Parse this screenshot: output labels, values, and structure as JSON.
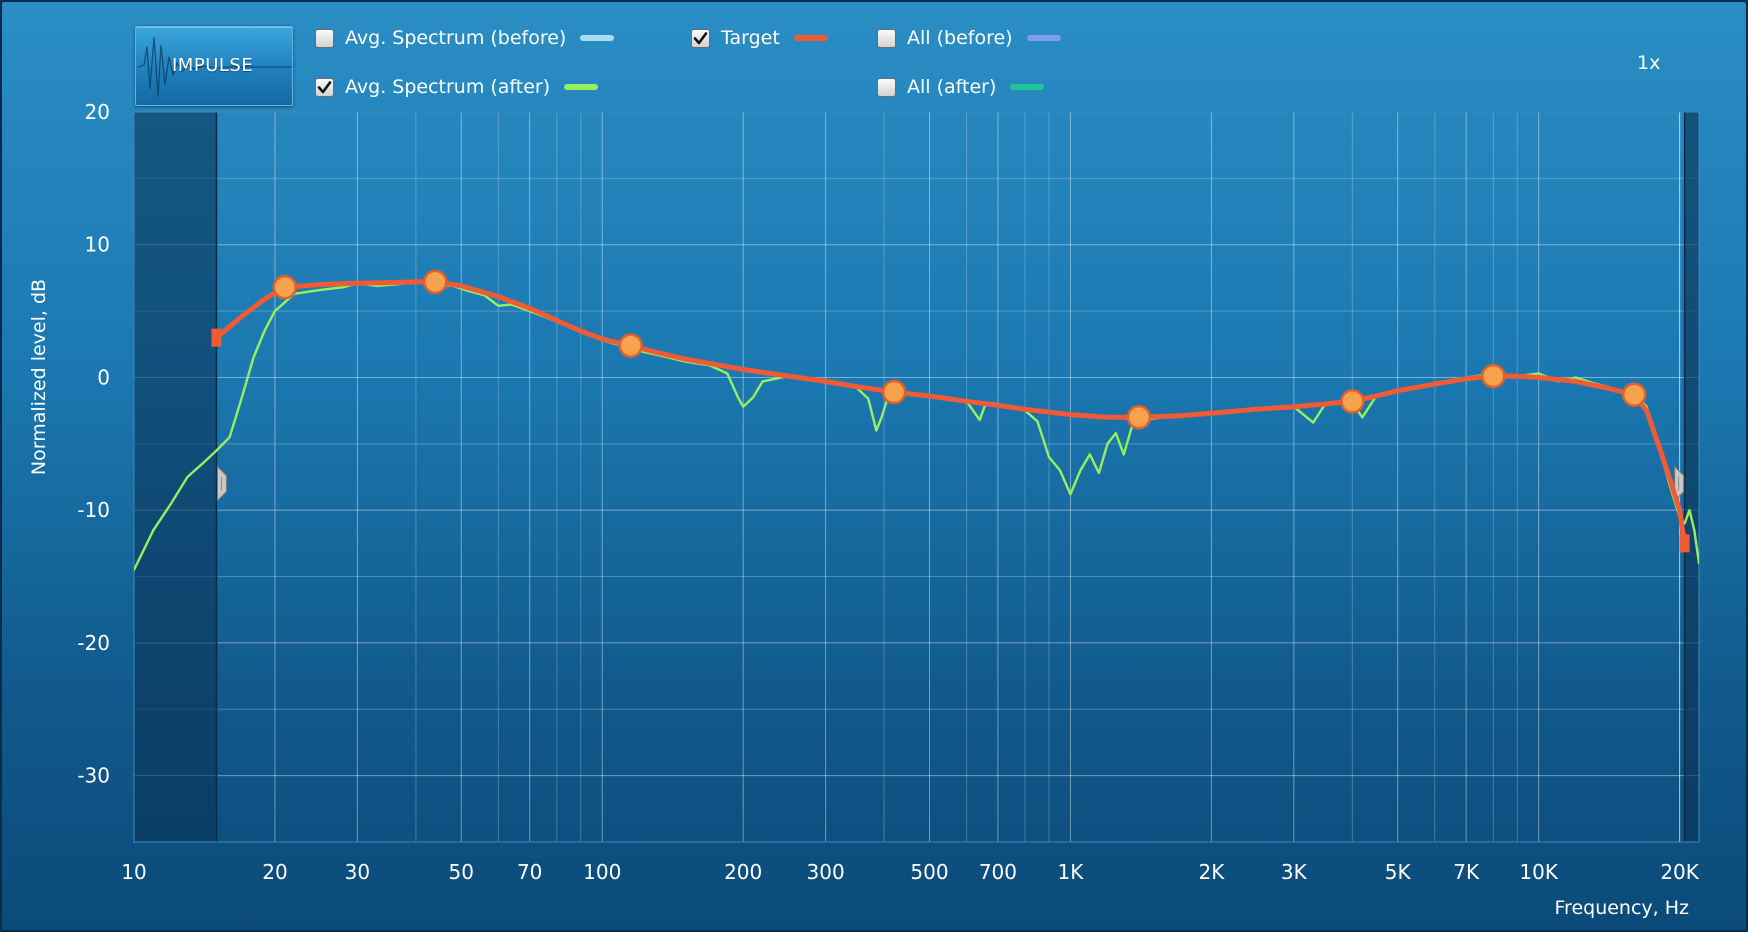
{
  "toolbar": {
    "impulse_label": "IMPULSE",
    "zoom_label": "1x"
  },
  "legend": {
    "items": [
      {
        "label": "Avg. Spectrum (before)",
        "checked": false,
        "color": "#a8dcf5"
      },
      {
        "label": "Target",
        "checked": true,
        "color": "#f05a34"
      },
      {
        "label": "All (before)",
        "checked": false,
        "color": "#7a9ff5"
      },
      {
        "label": "Avg. Spectrum (after)",
        "checked": true,
        "color": "#95f060"
      },
      {
        "label": "All (after)",
        "checked": false,
        "color": "#22c49a"
      }
    ]
  },
  "chart_data": {
    "type": "line",
    "x_scale": "log",
    "xlim": [
      10,
      22000
    ],
    "ylim": [
      -35,
      20
    ],
    "grid": true,
    "xlabel": "Frequency, Hz",
    "ylabel": "Normalized level, dB",
    "x_ticks": [
      {
        "value": 10,
        "label": "10"
      },
      {
        "value": 20,
        "label": "20"
      },
      {
        "value": 30,
        "label": "30"
      },
      {
        "value": 50,
        "label": "50"
      },
      {
        "value": 70,
        "label": "70"
      },
      {
        "value": 100,
        "label": "100"
      },
      {
        "value": 200,
        "label": "200"
      },
      {
        "value": 300,
        "label": "300"
      },
      {
        "value": 500,
        "label": "500"
      },
      {
        "value": 700,
        "label": "700"
      },
      {
        "value": 1000,
        "label": "1K"
      },
      {
        "value": 2000,
        "label": "2K"
      },
      {
        "value": 3000,
        "label": "3K"
      },
      {
        "value": 5000,
        "label": "5K"
      },
      {
        "value": 7000,
        "label": "7K"
      },
      {
        "value": 10000,
        "label": "10K"
      },
      {
        "value": 20000,
        "label": "20K"
      }
    ],
    "y_ticks": [
      {
        "value": 20,
        "label": "20"
      },
      {
        "value": 10,
        "label": "10"
      },
      {
        "value": 0,
        "label": "0"
      },
      {
        "value": -10,
        "label": "-10"
      },
      {
        "value": -20,
        "label": "-20"
      },
      {
        "value": -30,
        "label": "-30"
      }
    ],
    "range_limits": {
      "low_hz": 15,
      "high_hz": 20500
    },
    "series": [
      {
        "name": "Avg. Spectrum (after)",
        "color": "#95f060",
        "points": [
          [
            10,
            -14.5
          ],
          [
            11,
            -11.5
          ],
          [
            12,
            -9.5
          ],
          [
            13,
            -7.5
          ],
          [
            14,
            -6.5
          ],
          [
            15,
            -5.5
          ],
          [
            16,
            -4.5
          ],
          [
            17,
            -1.5
          ],
          [
            18,
            1.5
          ],
          [
            19,
            3.5
          ],
          [
            20,
            5.0
          ],
          [
            22,
            6.3
          ],
          [
            25,
            6.6
          ],
          [
            28,
            6.8
          ],
          [
            30,
            7.1
          ],
          [
            33,
            6.9
          ],
          [
            36,
            7.0
          ],
          [
            40,
            7.2
          ],
          [
            44,
            7.0
          ],
          [
            48,
            6.9
          ],
          [
            52,
            6.5
          ],
          [
            56,
            6.2
          ],
          [
            60,
            5.4
          ],
          [
            64,
            5.5
          ],
          [
            70,
            5.0
          ],
          [
            75,
            4.6
          ],
          [
            80,
            4.2
          ],
          [
            90,
            3.4
          ],
          [
            100,
            2.8
          ],
          [
            110,
            2.4
          ],
          [
            120,
            2.0
          ],
          [
            135,
            1.6
          ],
          [
            150,
            1.2
          ],
          [
            170,
            0.9
          ],
          [
            185,
            0.3
          ],
          [
            195,
            -1.5
          ],
          [
            200,
            -2.2
          ],
          [
            210,
            -1.5
          ],
          [
            220,
            -0.3
          ],
          [
            250,
            0.1
          ],
          [
            280,
            -0.1
          ],
          [
            300,
            -0.4
          ],
          [
            330,
            -0.6
          ],
          [
            350,
            -0.8
          ],
          [
            370,
            -1.6
          ],
          [
            385,
            -4.0
          ],
          [
            395,
            -3.0
          ],
          [
            410,
            -1.2
          ],
          [
            450,
            -1.2
          ],
          [
            500,
            -1.4
          ],
          [
            550,
            -1.6
          ],
          [
            600,
            -1.8
          ],
          [
            640,
            -3.2
          ],
          [
            660,
            -1.9
          ],
          [
            700,
            -2.0
          ],
          [
            750,
            -2.2
          ],
          [
            800,
            -2.5
          ],
          [
            850,
            -3.3
          ],
          [
            900,
            -6.0
          ],
          [
            950,
            -7.0
          ],
          [
            1000,
            -8.8
          ],
          [
            1050,
            -7.0
          ],
          [
            1100,
            -5.8
          ],
          [
            1150,
            -7.2
          ],
          [
            1200,
            -5.0
          ],
          [
            1250,
            -4.2
          ],
          [
            1300,
            -5.8
          ],
          [
            1350,
            -3.8
          ],
          [
            1400,
            -3.3
          ],
          [
            1500,
            -3.1
          ],
          [
            1700,
            -2.9
          ],
          [
            2000,
            -2.7
          ],
          [
            2500,
            -2.4
          ],
          [
            3000,
            -2.2
          ],
          [
            3300,
            -3.4
          ],
          [
            3500,
            -2.0
          ],
          [
            4000,
            -1.9
          ],
          [
            4200,
            -3.0
          ],
          [
            4500,
            -1.4
          ],
          [
            5000,
            -1.0
          ],
          [
            6000,
            -0.5
          ],
          [
            7000,
            0.0
          ],
          [
            8000,
            0.3
          ],
          [
            9000,
            0.1
          ],
          [
            10000,
            0.3
          ],
          [
            11000,
            -0.3
          ],
          [
            12000,
            0.0
          ],
          [
            13000,
            -0.4
          ],
          [
            14000,
            -0.7
          ],
          [
            15000,
            -1.0
          ],
          [
            16000,
            -1.2
          ],
          [
            17000,
            -2.2
          ],
          [
            18000,
            -5.0
          ],
          [
            19000,
            -8.0
          ],
          [
            20000,
            -10.5
          ],
          [
            20500,
            -11.0
          ],
          [
            21000,
            -10.0
          ],
          [
            21500,
            -11.5
          ],
          [
            22000,
            -14.0
          ]
        ]
      },
      {
        "name": "Target",
        "color": "#f05a34",
        "points": [
          [
            15,
            3.0
          ],
          [
            17,
            4.6
          ],
          [
            19,
            5.9
          ],
          [
            21,
            6.8
          ],
          [
            25,
            7.0
          ],
          [
            30,
            7.1
          ],
          [
            35,
            7.15
          ],
          [
            40,
            7.2
          ],
          [
            44,
            7.2
          ],
          [
            50,
            6.9
          ],
          [
            60,
            6.1
          ],
          [
            70,
            5.2
          ],
          [
            80,
            4.3
          ],
          [
            90,
            3.5
          ],
          [
            100,
            2.9
          ],
          [
            115,
            2.4
          ],
          [
            130,
            1.9
          ],
          [
            150,
            1.4
          ],
          [
            200,
            0.6
          ],
          [
            250,
            0.1
          ],
          [
            300,
            -0.3
          ],
          [
            350,
            -0.7
          ],
          [
            420,
            -1.1
          ],
          [
            500,
            -1.4
          ],
          [
            600,
            -1.8
          ],
          [
            700,
            -2.1
          ],
          [
            800,
            -2.4
          ],
          [
            1000,
            -2.8
          ],
          [
            1200,
            -3.0
          ],
          [
            1400,
            -3.0
          ],
          [
            1700,
            -2.9
          ],
          [
            2000,
            -2.7
          ],
          [
            2500,
            -2.4
          ],
          [
            3000,
            -2.2
          ],
          [
            3500,
            -2.0
          ],
          [
            4000,
            -1.8
          ],
          [
            4500,
            -1.4
          ],
          [
            5000,
            -1.0
          ],
          [
            6000,
            -0.5
          ],
          [
            7000,
            -0.1
          ],
          [
            8000,
            0.1
          ],
          [
            9000,
            0.1
          ],
          [
            10000,
            0.0
          ],
          [
            12000,
            -0.3
          ],
          [
            14000,
            -0.8
          ],
          [
            16000,
            -1.3
          ],
          [
            17000,
            -2.5
          ],
          [
            18000,
            -5.0
          ],
          [
            19000,
            -7.5
          ],
          [
            20000,
            -10.0
          ],
          [
            20500,
            -12.5
          ]
        ]
      }
    ],
    "control_points": [
      [
        21,
        6.8
      ],
      [
        44,
        7.2
      ],
      [
        115,
        2.4
      ],
      [
        420,
        -1.1
      ],
      [
        1400,
        -3.0
      ],
      [
        4000,
        -1.8
      ],
      [
        8000,
        0.1
      ],
      [
        16000,
        -1.3
      ]
    ]
  }
}
